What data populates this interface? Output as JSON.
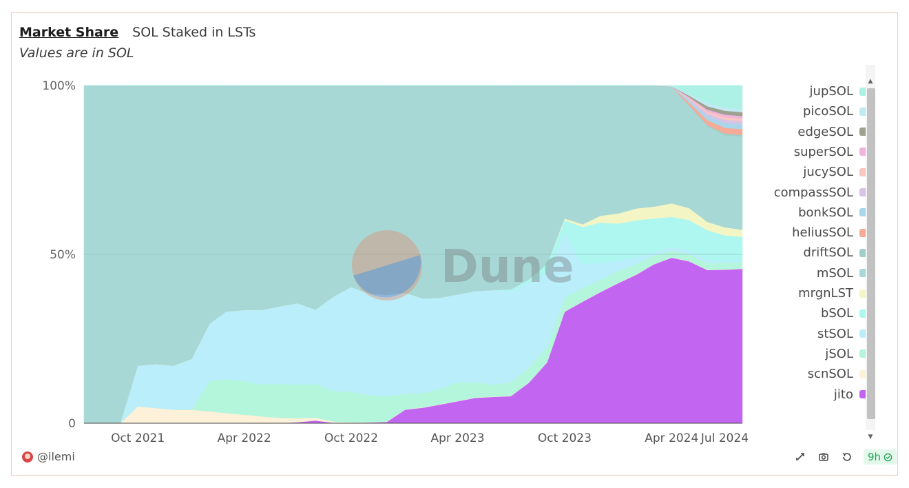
{
  "header": {
    "tab_active": "Market Share",
    "tab_other": "SOL Staked in LSTs",
    "subtitle": "Values are in SOL"
  },
  "footer": {
    "user": "@ilemi",
    "age": "9h"
  },
  "watermark": "Dune",
  "chart_data": {
    "type": "area",
    "stacking": "percent",
    "x": [
      "2021-07-01",
      "2021-08-01",
      "2021-09-01",
      "2021-10-01",
      "2021-11-01",
      "2021-12-01",
      "2022-01-01",
      "2022-02-01",
      "2022-03-01",
      "2022-04-01",
      "2022-05-01",
      "2022-06-01",
      "2022-07-01",
      "2022-08-01",
      "2022-09-01",
      "2022-10-01",
      "2022-11-01",
      "2022-12-01",
      "2023-01-01",
      "2023-02-01",
      "2023-03-01",
      "2023-04-01",
      "2023-05-01",
      "2023-06-01",
      "2023-07-01",
      "2023-08-01",
      "2023-09-01",
      "2023-10-01",
      "2023-11-01",
      "2023-12-01",
      "2024-01-01",
      "2024-02-01",
      "2024-03-01",
      "2024-04-01",
      "2024-05-01",
      "2024-06-01",
      "2024-07-01",
      "2024-07-31"
    ],
    "x_tick_labels": [
      "Oct 2021",
      "Apr 2022",
      "Oct 2022",
      "Apr 2023",
      "Oct 2023",
      "Apr 2024",
      "Jul 2024"
    ],
    "y_tick_labels": [
      "0",
      "50%",
      "100%"
    ],
    "ylim": [
      0,
      100
    ],
    "legend_position": "right",
    "series": [
      {
        "name": "jito",
        "color": "#c266f2",
        "values": [
          0,
          0,
          0,
          0,
          0,
          0,
          0,
          0,
          0,
          0,
          0,
          0,
          0.3,
          0.8,
          0.1,
          0.1,
          0.2,
          0.4,
          4.0,
          4.6,
          5.5,
          6.5,
          7.5,
          7.8,
          8.0,
          12,
          18,
          33,
          36,
          38.8,
          41.5,
          44,
          47,
          49,
          47.5,
          46.5,
          47.5,
          48.5
        ]
      },
      {
        "name": "scnSOL",
        "color": "#fdf1d9",
        "values": [
          0,
          0,
          0,
          5,
          4.5,
          4,
          4,
          3.5,
          3,
          2.5,
          2,
          1.6,
          1.2,
          0.8,
          0.4,
          0.2,
          0.1,
          0.1,
          0.1,
          0.1,
          0.1,
          0.1,
          0.1,
          0.1,
          0.1,
          0.1,
          0.1,
          0.1,
          0.1,
          0.1,
          0.1,
          0.1,
          0.1,
          0.1,
          0.1,
          0.1,
          0.1,
          0.1
        ]
      },
      {
        "name": "jSOL",
        "color": "#b3f6db",
        "values": [
          0,
          0,
          0,
          0,
          0,
          0,
          0,
          9,
          10,
          10,
          9.5,
          10,
          10,
          10,
          9,
          9,
          8,
          7.5,
          4.5,
          4.2,
          4.5,
          5.5,
          4.5,
          3.5,
          4,
          4.5,
          4.5,
          4,
          4,
          3.5,
          3.5,
          3,
          2.5,
          2,
          2,
          2,
          2,
          2
        ]
      },
      {
        "name": "stSOL",
        "color": "#baeefa",
        "values": [
          0,
          0,
          0,
          12,
          13,
          13,
          15,
          17,
          20,
          21,
          22,
          23,
          24,
          22,
          28,
          31,
          30,
          30,
          30,
          28,
          27,
          26,
          27,
          28,
          27,
          25,
          22,
          19,
          7,
          5,
          3,
          2,
          1,
          1,
          1,
          1,
          0.5,
          0.5
        ]
      },
      {
        "name": "bSOL",
        "color": "#aef7f1",
        "values": [
          0,
          0,
          0,
          0,
          0,
          0,
          0,
          0,
          0,
          0,
          0,
          0,
          0,
          0,
          0,
          0,
          0,
          0,
          0,
          0,
          0,
          0,
          0,
          0,
          0.5,
          1,
          2.5,
          4,
          11,
          12,
          11,
          11,
          10,
          9,
          9,
          9,
          8,
          7.5
        ]
      },
      {
        "name": "mrgnLST",
        "color": "#f3f6c4",
        "values": [
          0,
          0,
          0,
          0,
          0,
          0,
          0,
          0,
          0,
          0,
          0,
          0,
          0,
          0,
          0,
          0,
          0,
          0,
          0,
          0,
          0,
          0,
          0,
          0,
          0,
          0,
          0,
          0.5,
          0.8,
          2,
          3,
          3.5,
          3.5,
          4,
          3.5,
          2.5,
          2.5,
          2.2
        ]
      },
      {
        "name": "mSOL",
        "color": "#a8d8d6",
        "values": [
          100,
          100,
          100,
          83,
          82.5,
          83,
          81,
          70.5,
          67,
          66.5,
          66.5,
          65.4,
          64.5,
          66.4,
          62.5,
          59.7,
          61.7,
          62,
          61.4,
          63.1,
          62.9,
          61.9,
          60.9,
          60.6,
          60.4,
          57.4,
          52.9,
          39.4,
          41.1,
          38.6,
          37.9,
          36.4,
          35.9,
          34.4,
          30,
          29,
          28.5,
          29.3
        ]
      },
      {
        "name": "driftSOL",
        "color": "#9fcfc8",
        "values": [
          0,
          0,
          0,
          0,
          0,
          0,
          0,
          0,
          0,
          0,
          0,
          0,
          0,
          0,
          0,
          0,
          0,
          0,
          0,
          0,
          0,
          0,
          0,
          0,
          0,
          0,
          0,
          0,
          0,
          0,
          0,
          0,
          0,
          0,
          0.2,
          0.4,
          0.5,
          0.5
        ]
      },
      {
        "name": "heliusSOL",
        "color": "#f6ab98",
        "values": [
          0,
          0,
          0,
          0,
          0,
          0,
          0,
          0,
          0,
          0,
          0,
          0,
          0,
          0,
          0,
          0,
          0,
          0,
          0,
          0,
          0,
          0,
          0,
          0,
          0,
          0,
          0,
          0,
          0,
          0,
          0,
          0,
          0,
          0.1,
          0.8,
          1.5,
          1.8,
          1.8
        ]
      },
      {
        "name": "bonkSOL",
        "color": "#a9d6ea",
        "values": [
          0,
          0,
          0,
          0,
          0,
          0,
          0,
          0,
          0,
          0,
          0,
          0,
          0,
          0,
          0,
          0,
          0,
          0,
          0,
          0,
          0,
          0,
          0,
          0,
          0,
          0,
          0,
          0,
          0,
          0,
          0,
          0,
          0,
          0.1,
          0.6,
          1.2,
          1.5,
          1.5
        ]
      },
      {
        "name": "compassSOL",
        "color": "#d6c3e6",
        "values": [
          0,
          0,
          0,
          0,
          0,
          0,
          0,
          0,
          0,
          0,
          0,
          0,
          0,
          0,
          0,
          0,
          0,
          0,
          0,
          0,
          0,
          0,
          0,
          0,
          0,
          0,
          0,
          0,
          0,
          0,
          0,
          0,
          0,
          0,
          0.4,
          0.8,
          1,
          1
        ]
      },
      {
        "name": "jucySOL",
        "color": "#f9c6c0",
        "values": [
          0,
          0,
          0,
          0,
          0,
          0,
          0,
          0,
          0,
          0,
          0,
          0,
          0,
          0,
          0,
          0,
          0,
          0,
          0,
          0,
          0,
          0,
          0,
          0,
          0,
          0,
          0,
          0,
          0,
          0,
          0,
          0,
          0,
          0,
          0.3,
          0.6,
          0.8,
          0.8
        ]
      },
      {
        "name": "superSOL",
        "color": "#f0b3d9",
        "values": [
          0,
          0,
          0,
          0,
          0,
          0,
          0,
          0,
          0,
          0,
          0,
          0,
          0,
          0,
          0,
          0,
          0,
          0,
          0,
          0,
          0,
          0,
          0,
          0,
          0,
          0,
          0,
          0,
          0,
          0,
          0,
          0,
          0,
          0,
          0.3,
          0.6,
          0.8,
          0.8
        ]
      },
      {
        "name": "edgeSOL",
        "color": "#9ea090",
        "values": [
          0,
          0,
          0,
          0,
          0,
          0,
          0,
          0,
          0,
          0,
          0,
          0,
          0,
          0,
          0,
          0,
          0,
          0,
          0,
          0,
          0,
          0,
          0,
          0,
          0,
          0,
          0,
          0,
          0,
          0,
          0,
          0,
          0,
          0,
          0.4,
          1,
          1.2,
          1.2
        ]
      },
      {
        "name": "picoSOL",
        "color": "#bfeaf2",
        "values": [
          0,
          0,
          0,
          0,
          0,
          0,
          0,
          0,
          0,
          0,
          0,
          0,
          0,
          0,
          0,
          0,
          0,
          0,
          0,
          0,
          0,
          0,
          0,
          0,
          0,
          0,
          0,
          0,
          0,
          0,
          0,
          0,
          0,
          0,
          0.5,
          1,
          1,
          1
        ]
      },
      {
        "name": "jupSOL",
        "color": "#adf0e6",
        "values": [
          0,
          0,
          0,
          0,
          0,
          0,
          0,
          0,
          0,
          0,
          0,
          0,
          0,
          0,
          0,
          0,
          0,
          0,
          0,
          0,
          0,
          0,
          0,
          0,
          0,
          0,
          0,
          0,
          0,
          0,
          0,
          0,
          0,
          0.3,
          2.5,
          5.3,
          6.8,
          7.4
        ]
      }
    ]
  }
}
